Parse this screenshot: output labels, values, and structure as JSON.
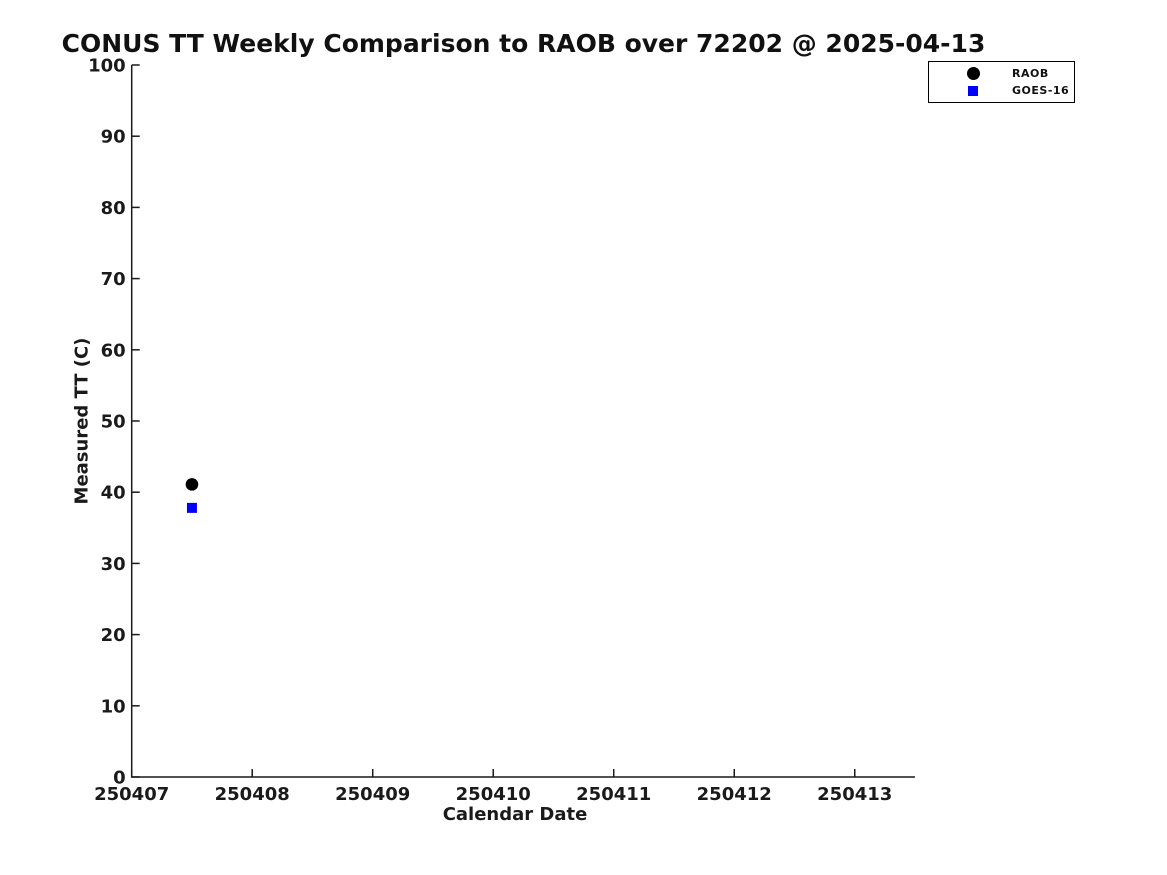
{
  "page": {
    "background_color": "#ffffff"
  },
  "chart": {
    "title": "CONUS TT Weekly Comparison to RAOB over 72202 @ 2025-04-13",
    "xlabel": "Calendar Date",
    "ylabel": "Measured TT (C)"
  },
  "legend": {
    "items": [
      {
        "label": "RAOB",
        "marker": "circle",
        "color": "#000000"
      },
      {
        "label": "GOES-16",
        "marker": "square",
        "color": "#0000ff"
      }
    ]
  },
  "chart_data": {
    "type": "scatter",
    "title": "CONUS TT Weekly Comparison to RAOB over 72202 @ 2025-04-13",
    "xlabel": "Calendar Date",
    "ylabel": "Measured TT (C)",
    "xlim": [
      250407,
      250413.5
    ],
    "ylim": [
      0,
      100
    ],
    "x_ticks": [
      250407,
      250408,
      250409,
      250410,
      250411,
      250412,
      250413
    ],
    "y_ticks": [
      0,
      10,
      20,
      30,
      40,
      50,
      60,
      70,
      80,
      90,
      100
    ],
    "grid": false,
    "legend_position": "top-right-outside",
    "axis_color": "#1a1a1a",
    "series": [
      {
        "name": "RAOB",
        "marker": "circle",
        "color": "#000000",
        "points": [
          {
            "x": 250407.5,
            "y": 41.1
          }
        ]
      },
      {
        "name": "GOES-16",
        "marker": "square",
        "color": "#0000ff",
        "points": [
          {
            "x": 250407.5,
            "y": 37.8
          }
        ]
      }
    ]
  }
}
